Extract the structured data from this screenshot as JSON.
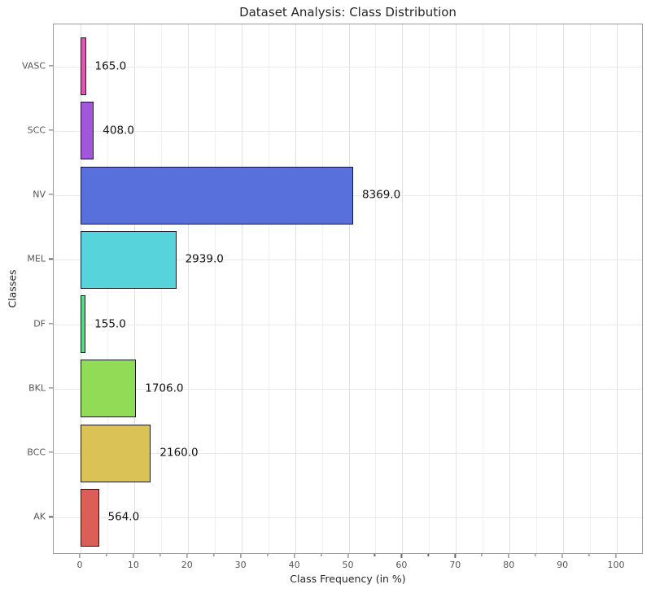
{
  "chart_data": {
    "type": "bar",
    "orientation": "horizontal",
    "title": "Dataset Analysis: Class Distribution",
    "xlabel": "Class Frequency (in %)",
    "ylabel": "Classes",
    "categories": [
      "VASC",
      "SCC",
      "NV",
      "MEL",
      "DF",
      "BKL",
      "BCC",
      "AK"
    ],
    "values": [
      165.0,
      408.0,
      8369.0,
      2939.0,
      155.0,
      1706.0,
      2160.0,
      564.0
    ],
    "value_labels": [
      "165.0",
      "408.0",
      "8369.0",
      "2939.0",
      "155.0",
      "1706.0",
      "2160.0",
      "564.0"
    ],
    "bar_colors": [
      "#db57b2",
      "#a157db",
      "#5770db",
      "#57d3db",
      "#57db80",
      "#91db57",
      "#dbc257",
      "#db5f57"
    ],
    "x_ticks": [
      0,
      10,
      20,
      30,
      40,
      50,
      60,
      70,
      80,
      90,
      100
    ],
    "x_minor_ticks": [
      5,
      15,
      25,
      35,
      45,
      55,
      65,
      75,
      85,
      95
    ],
    "xlim": [
      -5,
      105
    ],
    "bar_unit": "percent_of_total",
    "grid": true,
    "legend_position": "none"
  },
  "style_colors": {
    "background": "#ffffff",
    "bar_edge": "#1a1a1a",
    "spine": "#9b9b9b",
    "grid_major": "#e2e2e2",
    "grid_minor": "#f0f0f0",
    "grid_horizontal": "#e9e9e9",
    "tick_mark": "#666666",
    "tick_label_text": "#555555",
    "text": "#262626",
    "value_label_text": "#111111"
  }
}
